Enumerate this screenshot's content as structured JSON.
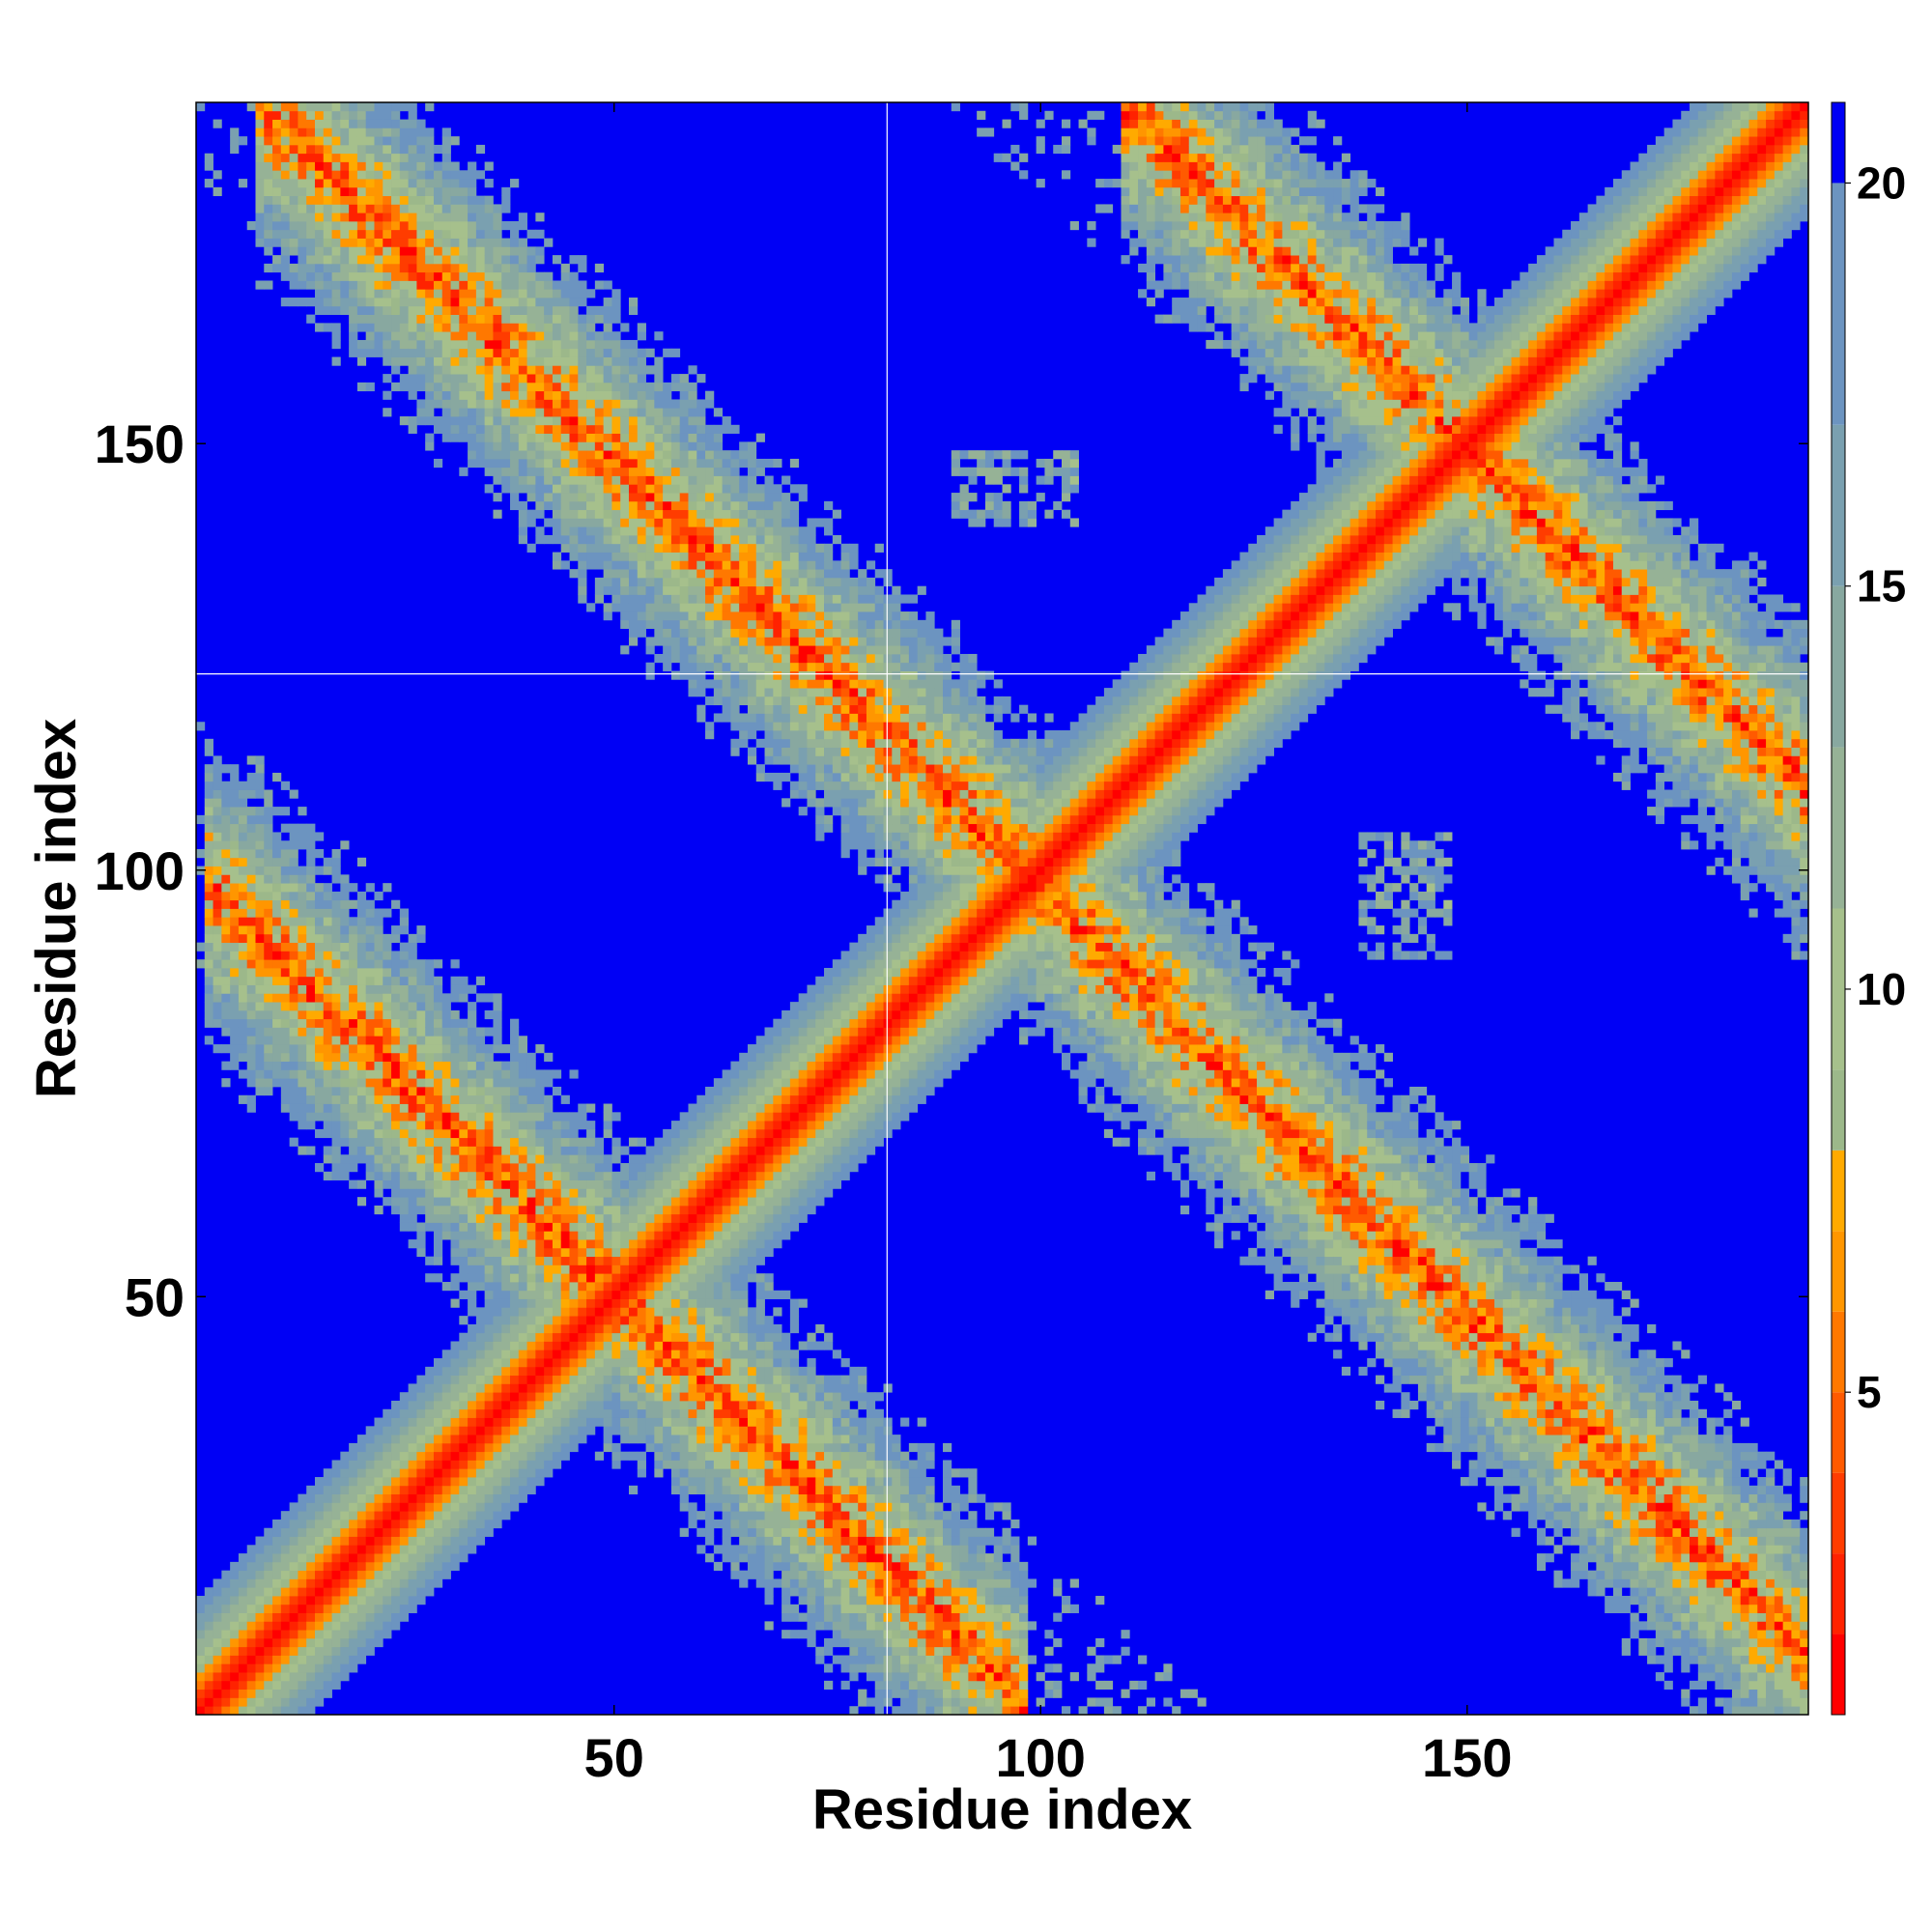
{
  "chart_data": {
    "type": "heatmap",
    "description_kind": "residue contact / distance map",
    "xlabel": "Residue index",
    "ylabel": "Residue index",
    "n_residues": 190,
    "xlim": [
      1,
      190
    ],
    "ylim": [
      1,
      190
    ],
    "x_ticks": [
      50,
      100,
      150
    ],
    "y_ticks": [
      50,
      100,
      150
    ],
    "colorbar": {
      "range": [
        1,
        21
      ],
      "ticks": [
        5,
        10,
        15,
        20
      ],
      "levels": [
        {
          "max": 2,
          "color": "#ff0000"
        },
        {
          "max": 3,
          "color": "#ff2200"
        },
        {
          "max": 4,
          "color": "#ff3c00"
        },
        {
          "max": 5,
          "color": "#ff5a00"
        },
        {
          "max": 6,
          "color": "#ff7800"
        },
        {
          "max": 7,
          "color": "#ff9600"
        },
        {
          "max": 8,
          "color": "#ffaa00"
        },
        {
          "max": 9,
          "color": "#9cb88a"
        },
        {
          "max": 11,
          "color": "#a6c08c"
        },
        {
          "max": 13,
          "color": "#96b296"
        },
        {
          "max": 15,
          "color": "#88a8a0"
        },
        {
          "max": 17,
          "color": "#7aa0b0"
        },
        {
          "max": 20,
          "color": "#6c94c0"
        },
        {
          "max": 21,
          "color": "#0000f5"
        }
      ],
      "background_color": "#0000f5"
    },
    "features": [
      {
        "kind": "main-diagonal",
        "description": "distances grow from ~1 at |i-j|=0 to >20 at |i-j|~14"
      },
      {
        "kind": "anti-diagonal-band",
        "i_plus_j": 100,
        "i_range": [
          1,
          98
        ],
        "description": "antiparallel strand pairing"
      },
      {
        "kind": "anti-diagonal-band",
        "i_plus_j": 198,
        "i_range": [
          5,
          190
        ]
      },
      {
        "kind": "anti-diagonal-band",
        "i_plus_j": 300,
        "i_range": [
          110,
          190
        ]
      },
      {
        "kind": "patch",
        "i_range": [
          90,
          104
        ],
        "j_range": [
          141,
          149
        ]
      },
      {
        "kind": "patch",
        "i_range": [
          138,
          148
        ],
        "j_range": [
          90,
          104
        ]
      }
    ],
    "gridline_crosshair": {
      "x": 82,
      "y": 123
    }
  }
}
